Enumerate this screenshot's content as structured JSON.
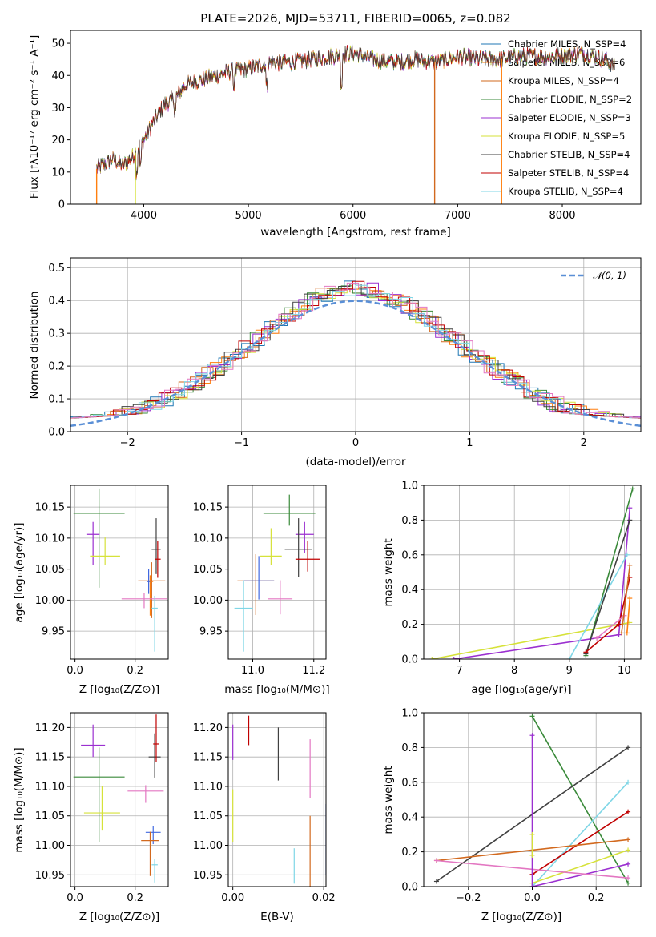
{
  "colors": {
    "chabrier_miles": "#1f77b4",
    "salpeter_miles": "#ff7f0e",
    "kroupa_miles": "#d2691e",
    "chabrier_elodie": "#3a8a3a",
    "salpeter_elodie": "#9b30d0",
    "kroupa_elodie": "#d6e23a",
    "chabrier_stelib": "#404040",
    "salpeter_stelib": "#c00000",
    "kroupa_stelib": "#7fd6e6",
    "extra_pink": "#e377c2",
    "extra_blue": "#4169e1",
    "extra_orange": "#ff7f0e",
    "normal_curve": "#5a8fd6",
    "grid": "#b0b0b0"
  },
  "chart_data": [
    {
      "id": "spectrum",
      "type": "line",
      "title": "PLATE=2026, MJD=53711, FIBERID=0065, z=0.082",
      "xlabel": "wavelength [Angstrom, rest frame]",
      "ylabel": "Flux [fλ10⁻¹⁷ erg cm⁻² s⁻¹ A⁻¹]",
      "xlim": [
        3300,
        8750
      ],
      "ylim": [
        0,
        54
      ],
      "xticks": [
        "4000",
        "5000",
        "6000",
        "7000",
        "8000"
      ],
      "yticks": [
        "0",
        "10",
        "20",
        "30",
        "40",
        "50"
      ],
      "grid": false,
      "legend_position": "top-right",
      "legend": [
        "Chabrier MILES, N_SSP=4",
        "Salpeter MILES, N_SSP=6",
        "Kroupa MILES, N_SSP=4",
        "Chabrier ELODIE, N_SSP=2",
        "Salpeter ELODIE, N_SSP=3",
        "Kroupa ELODIE, N_SSP=5",
        "Chabrier STELIB, N_SSP=4",
        "Salpeter STELIB, N_SSP=4",
        "Kroupa STELIB, N_SSP=4"
      ],
      "continuum": {
        "x": [
          3550,
          3700,
          3800,
          3900,
          4000,
          4100,
          4200,
          4300,
          4400,
          4500,
          4600,
          4800,
          5000,
          5200,
          5400,
          5600,
          5800,
          6000,
          6200,
          6400,
          6600,
          6800,
          7000,
          7200,
          7400,
          7600,
          7800,
          8000,
          8200,
          8400,
          8500
        ],
        "y": [
          11,
          14,
          12,
          15,
          20,
          26,
          31,
          33,
          37,
          38,
          39,
          41,
          42,
          44,
          44,
          45,
          46,
          47,
          45,
          44,
          45,
          44,
          46,
          45,
          45,
          46,
          46,
          46,
          47,
          45,
          43
        ]
      },
      "drops": [
        {
          "x": 3550,
          "series": "salpeter_miles"
        },
        {
          "x": 3920,
          "series": "kroupa_elodie"
        },
        {
          "x": 6780,
          "series": "kroupa_miles"
        },
        {
          "x": 7420,
          "series": "salpeter_miles"
        }
      ]
    },
    {
      "id": "residuals",
      "type": "line",
      "xlabel": "(data-model)/error",
      "ylabel": "Normed distribution",
      "xlim": [
        -2.5,
        2.5
      ],
      "ylim": [
        0,
        0.53
      ],
      "xticks": [
        "−2",
        "−1",
        "0",
        "1",
        "2"
      ],
      "yticks": [
        "0.0",
        "0.1",
        "0.2",
        "0.3",
        "0.4",
        "0.5"
      ],
      "grid": true,
      "legend_position": "top-right",
      "legend": [
        "𝒩(0, 1)"
      ],
      "normal_curve": {
        "mean": 0,
        "sigma": 1
      }
    },
    {
      "id": "age_vs_Z",
      "type": "scatter",
      "xlabel": "Z [log₁₀(Z/Z⊙)]",
      "ylabel": "age  [log₁₀(age/yr)]",
      "xlim": [
        -0.015,
        0.31
      ],
      "ylim": [
        9.905,
        10.185
      ],
      "xticks": [
        "0.0",
        "0.2"
      ],
      "yticks": [
        "9.95",
        "10.00",
        "10.05",
        "10.10",
        "10.15"
      ],
      "grid": true,
      "points": [
        {
          "series": "chabrier_elodie",
          "x": 0.08,
          "y": 10.14,
          "xerr": 0.085,
          "yerr_low": 0.12,
          "yerr_high": 0.04
        },
        {
          "series": "salpeter_elodie",
          "x": 0.06,
          "y": 10.106,
          "xerr": 0.022,
          "yerr_low": 0.05,
          "yerr_high": 0.02
        },
        {
          "series": "kroupa_elodie",
          "x": 0.1,
          "y": 10.071,
          "xerr": 0.05,
          "yerr_low": 0.015,
          "yerr_high": 0.03
        },
        {
          "series": "chabrier_stelib",
          "x": 0.27,
          "y": 10.082,
          "xerr": 0.015,
          "yerr_low": 0.04,
          "yerr_high": 0.05
        },
        {
          "series": "salpeter_stelib",
          "x": 0.275,
          "y": 10.066,
          "xerr": 0.01,
          "yerr_low": 0.03,
          "yerr_high": 0.03
        },
        {
          "series": "kroupa_miles",
          "x": 0.255,
          "y": 10.031,
          "xerr": 0.045,
          "yerr_low": 0.06,
          "yerr_high": 0.03
        },
        {
          "series": "salpeter_miles",
          "x": 0.25,
          "y": 10.03,
          "xerr": 0.01,
          "yerr_low": 0.055,
          "yerr_high": 0.01
        },
        {
          "series": "extra_pink",
          "x": 0.23,
          "y": 10.002,
          "xerr": 0.075,
          "yerr_low": 0.015,
          "yerr_high": 0.01
        },
        {
          "series": "kroupa_stelib",
          "x": 0.265,
          "y": 9.987,
          "xerr": 0.01,
          "yerr_low": 0.07,
          "yerr_high": 0.02
        },
        {
          "series": "extra_blue",
          "x": 0.245,
          "y": 10.03,
          "xerr": 0.005,
          "yerr_low": 0.02,
          "yerr_high": 0.02
        }
      ]
    },
    {
      "id": "age_vs_mass",
      "type": "scatter",
      "xlabel": "mass [log₁₀(M/M⊙)]",
      "ylabel": "",
      "xlim": [
        10.92,
        11.24
      ],
      "ylim": [
        9.905,
        10.185
      ],
      "xticks": [
        "11.0",
        "11.2"
      ],
      "yticks": [
        "9.95",
        "10.00",
        "10.05",
        "10.10",
        "10.15"
      ],
      "grid": true,
      "points": [
        {
          "series": "chabrier_elodie",
          "x": 11.12,
          "y": 10.14,
          "xerr": 0.085,
          "yerr_low": 0.02,
          "yerr_high": 0.03
        },
        {
          "series": "salpeter_elodie",
          "x": 11.17,
          "y": 10.106,
          "xerr": 0.03,
          "yerr_low": 0.03,
          "yerr_high": 0.02
        },
        {
          "series": "kroupa_elodie",
          "x": 11.06,
          "y": 10.071,
          "xerr": 0.035,
          "yerr_low": 0.015,
          "yerr_high": 0.045
        },
        {
          "series": "chabrier_stelib",
          "x": 11.15,
          "y": 10.082,
          "xerr": 0.045,
          "yerr_low": 0.045,
          "yerr_high": 0.05
        },
        {
          "series": "salpeter_stelib",
          "x": 11.18,
          "y": 10.066,
          "xerr": 0.04,
          "yerr_low": 0.02,
          "yerr_high": 0.03
        },
        {
          "series": "kroupa_miles",
          "x": 11.01,
          "y": 10.031,
          "xerr": 0.06,
          "yerr_low": 0.055,
          "yerr_high": 0.043
        },
        {
          "series": "extra_blue",
          "x": 11.02,
          "y": 10.031,
          "xerr": 0.05,
          "yerr_low": 0.03,
          "yerr_high": 0.04
        },
        {
          "series": "extra_pink",
          "x": 11.09,
          "y": 10.002,
          "xerr": 0.04,
          "yerr_low": 0.025,
          "yerr_high": 0.03
        },
        {
          "series": "kroupa_stelib",
          "x": 10.97,
          "y": 9.987,
          "xerr": 0.03,
          "yerr_low": 0.07,
          "yerr_high": 0.045
        }
      ]
    },
    {
      "id": "massweight_vs_age",
      "type": "line",
      "xlabel": "age  [log₁₀(age/yr)]",
      "ylabel": "mass weight",
      "xlim": [
        6.35,
        10.3
      ],
      "ylim": [
        0,
        1.0
      ],
      "xticks": [
        "7",
        "8",
        "9",
        "10"
      ],
      "yticks": [
        "0.0",
        "0.2",
        "0.4",
        "0.6",
        "0.8",
        "1.0"
      ],
      "grid": true,
      "series": [
        {
          "series": "kroupa_elodie",
          "x": [
            6.5,
            10.1
          ],
          "y": [
            0.0,
            0.21
          ]
        },
        {
          "series": "salpeter_elodie",
          "x": [
            6.9,
            9.9,
            10.1
          ],
          "y": [
            0.0,
            0.14,
            0.87
          ]
        },
        {
          "series": "chabrier_elodie",
          "x": [
            9.3,
            10.15
          ],
          "y": [
            0.02,
            0.98
          ]
        },
        {
          "series": "kroupa_stelib",
          "x": [
            9.0,
            10.05
          ],
          "y": [
            0.0,
            0.6
          ]
        },
        {
          "series": "chabrier_stelib",
          "x": [
            9.3,
            10.1
          ],
          "y": [
            0.03,
            0.8
          ]
        },
        {
          "series": "salpeter_stelib",
          "x": [
            9.3,
            9.9,
            10.1
          ],
          "y": [
            0.04,
            0.2,
            0.47
          ]
        },
        {
          "series": "extra_pink",
          "x": [
            9.5,
            10.0
          ],
          "y": [
            0.12,
            0.25
          ]
        },
        {
          "series": "kroupa_miles",
          "x": [
            9.95,
            10.1
          ],
          "y": [
            0.15,
            0.54
          ]
        },
        {
          "series": "salpeter_miles",
          "x": [
            10.05,
            10.1
          ],
          "y": [
            0.15,
            0.35
          ]
        }
      ]
    },
    {
      "id": "mass_vs_Z",
      "type": "scatter",
      "xlabel": "Z [log₁₀(Z/Z⊙)]",
      "ylabel": "mass [log₁₀(M/M⊙)]",
      "xlim": [
        -0.015,
        0.31
      ],
      "ylim": [
        10.93,
        11.225
      ],
      "xticks": [
        "0.0",
        "0.2"
      ],
      "yticks": [
        "10.95",
        "11.00",
        "11.05",
        "11.10",
        "11.15",
        "11.20"
      ],
      "grid": true,
      "points": [
        {
          "series": "chabrier_elodie",
          "x": 0.08,
          "y": 11.116,
          "xerr": 0.085,
          "yerr_low": 0.11,
          "yerr_high": 0.05
        },
        {
          "series": "salpeter_elodie",
          "x": 0.06,
          "y": 11.17,
          "xerr": 0.04,
          "yerr_low": 0.02,
          "yerr_high": 0.035
        },
        {
          "series": "kroupa_elodie",
          "x": 0.09,
          "y": 11.055,
          "xerr": 0.06,
          "yerr_low": 0.03,
          "yerr_high": 0.045
        },
        {
          "series": "chabrier_stelib",
          "x": 0.265,
          "y": 11.15,
          "xerr": 0.02,
          "yerr_low": 0.035,
          "yerr_high": 0.04
        },
        {
          "series": "salpeter_stelib",
          "x": 0.27,
          "y": 11.172,
          "xerr": 0.01,
          "yerr_low": 0.03,
          "yerr_high": 0.05
        },
        {
          "series": "extra_pink",
          "x": 0.235,
          "y": 11.092,
          "xerr": 0.06,
          "yerr_low": 0.02,
          "yerr_high": 0.01
        },
        {
          "series": "extra_blue",
          "x": 0.26,
          "y": 11.022,
          "xerr": 0.025,
          "yerr_low": 0.02,
          "yerr_high": 0.01
        },
        {
          "series": "kroupa_miles",
          "x": 0.25,
          "y": 11.008,
          "xerr": 0.03,
          "yerr_low": 0.06,
          "yerr_high": 0.015
        },
        {
          "series": "kroupa_stelib",
          "x": 0.265,
          "y": 10.967,
          "xerr": 0.01,
          "yerr_low": 0.03,
          "yerr_high": 0.01
        }
      ]
    },
    {
      "id": "mass_vs_ebv",
      "type": "scatter",
      "xlabel": "E(B-V)",
      "ylabel": "",
      "xlim": [
        -0.001,
        0.0205
      ],
      "ylim": [
        10.93,
        11.225
      ],
      "xticks": [
        "0.00",
        "0.02"
      ],
      "yticks": [
        "10.95",
        "11.00",
        "11.05",
        "11.10",
        "11.15",
        "11.20"
      ],
      "grid": true,
      "points": [
        {
          "series": "salpeter_elodie",
          "x": 0.0,
          "y": 11.17,
          "xerr": 0,
          "yerr_low": 0.025,
          "yerr_high": 0.035
        },
        {
          "series": "kroupa_elodie",
          "x": 0.0,
          "y": 11.055,
          "xerr": 0,
          "yerr_low": 0.05,
          "yerr_high": 0.04
        },
        {
          "series": "salpeter_stelib",
          "x": 0.0035,
          "y": 11.195,
          "xerr": 0,
          "yerr_low": 0.025,
          "yerr_high": 0.025
        },
        {
          "series": "chabrier_stelib",
          "x": 0.01,
          "y": 11.155,
          "xerr": 0,
          "yerr_low": 0.045,
          "yerr_high": 0.045
        },
        {
          "series": "extra_pink",
          "x": 0.017,
          "y": 11.12,
          "xerr": 0,
          "yerr_low": 0.04,
          "yerr_high": 0.06
        },
        {
          "series": "kroupa_miles",
          "x": 0.017,
          "y": 11.0,
          "xerr": 0,
          "yerr_low": 0.07,
          "yerr_high": 0.05
        },
        {
          "series": "kroupa_stelib",
          "x": 0.0135,
          "y": 10.965,
          "xerr": 0,
          "yerr_low": 0.03,
          "yerr_high": 0.03
        },
        {
          "series": "extra_blue",
          "x": 0.0205,
          "y": 11.01,
          "xerr": 0,
          "yerr_low": 0.06,
          "yerr_high": 0.06
        }
      ]
    },
    {
      "id": "massweight_vs_Z",
      "type": "line",
      "xlabel": "Z [log₁₀(Z/Z⊙)]",
      "ylabel": "mass weight",
      "xlim": [
        -0.34,
        0.34
      ],
      "ylim": [
        0,
        1.0
      ],
      "xticks": [
        "−0.2",
        "0.0",
        "0.2"
      ],
      "yticks": [
        "0.0",
        "0.2",
        "0.4",
        "0.6",
        "0.8",
        "1.0"
      ],
      "grid": true,
      "series": [
        {
          "series": "chabrier_elodie",
          "x": [
            0.0,
            0.3
          ],
          "y": [
            0.98,
            0.02
          ]
        },
        {
          "series": "chabrier_stelib",
          "x": [
            -0.3,
            0.3
          ],
          "y": [
            0.03,
            0.8
          ]
        },
        {
          "series": "kroupa_stelib",
          "x": [
            0.0,
            0.3
          ],
          "y": [
            0.0,
            0.6
          ]
        },
        {
          "series": "salpeter_stelib",
          "x": [
            0.0,
            0.3
          ],
          "y": [
            0.07,
            0.43
          ]
        },
        {
          "series": "salpeter_elodie",
          "x": [
            0.0,
            0.3
          ],
          "y": [
            0.0,
            0.13
          ]
        },
        {
          "series": "kroupa_elodie",
          "x": [
            0.0,
            0.3
          ],
          "y": [
            0.02,
            0.21
          ]
        },
        {
          "series": "kroupa_miles",
          "x": [
            -0.3,
            0.3
          ],
          "y": [
            0.15,
            0.27
          ]
        },
        {
          "series": "extra_pink",
          "x": [
            -0.3,
            0.3
          ],
          "y": [
            0.15,
            0.05
          ]
        },
        {
          "series": "salpeter_elodie",
          "x": [
            0.0,
            0.0
          ],
          "y": [
            0.0,
            0.87
          ]
        },
        {
          "series": "kroupa_elodie",
          "x": [
            0.0,
            0.0
          ],
          "y": [
            0.18,
            0.3
          ]
        }
      ]
    }
  ]
}
